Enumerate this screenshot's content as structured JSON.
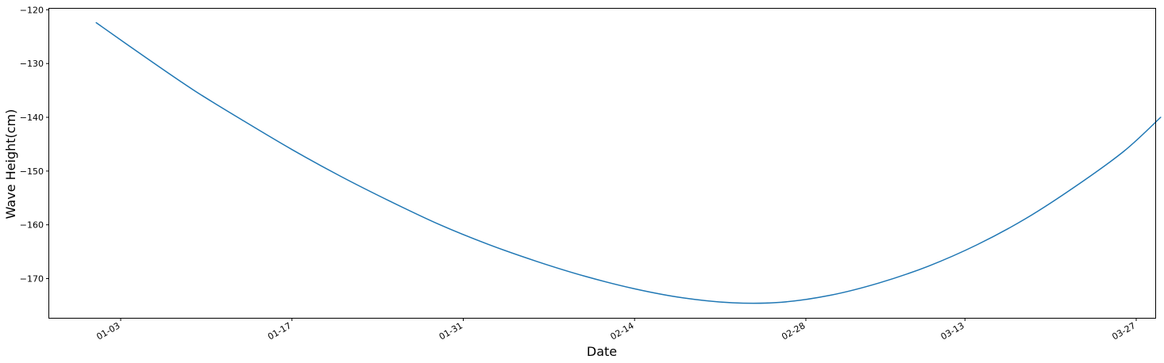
{
  "chart_data": {
    "type": "line",
    "title": "",
    "xlabel": "Date",
    "ylabel": "Wave Height(cm)",
    "x_ticks": [
      "01-03",
      "01-17",
      "01-31",
      "02-14",
      "02-28",
      "03-13",
      "03-27"
    ],
    "y_ticks": [
      -120,
      -130,
      -140,
      -150,
      -160,
      -170
    ],
    "ylim": [
      -177.3,
      -119.8
    ],
    "grid": false,
    "legend": "none",
    "series": [
      {
        "color": "#1f77b4",
        "points": [
          {
            "x": "01-01",
            "y": -122.4
          },
          {
            "x": "01-05",
            "y": -128.8
          },
          {
            "x": "01-09",
            "y": -135.0
          },
          {
            "x": "01-13",
            "y": -140.6
          },
          {
            "x": "01-17",
            "y": -146.0
          },
          {
            "x": "01-21",
            "y": -151.0
          },
          {
            "x": "01-25",
            "y": -155.6
          },
          {
            "x": "01-29",
            "y": -159.9
          },
          {
            "x": "02-02",
            "y": -163.6
          },
          {
            "x": "02-06",
            "y": -166.8
          },
          {
            "x": "02-10",
            "y": -169.6
          },
          {
            "x": "02-14",
            "y": -171.9
          },
          {
            "x": "02-18",
            "y": -173.6
          },
          {
            "x": "02-22",
            "y": -174.5
          },
          {
            "x": "02-26",
            "y": -174.4
          },
          {
            "x": "03-02",
            "y": -173.1
          },
          {
            "x": "03-06",
            "y": -170.8
          },
          {
            "x": "03-10",
            "y": -167.7
          },
          {
            "x": "03-14",
            "y": -163.7
          },
          {
            "x": "03-18",
            "y": -158.8
          },
          {
            "x": "03-22",
            "y": -152.9
          },
          {
            "x": "03-26",
            "y": -146.3
          },
          {
            "x": "03-29",
            "y": -140.0
          }
        ]
      }
    ]
  }
}
